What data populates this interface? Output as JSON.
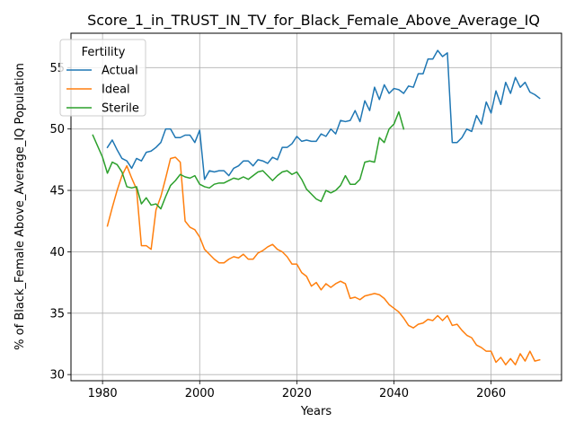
{
  "chart_data": {
    "type": "line",
    "title": "Score_1_in_TRUST_IN_TV_for_Black_Female_Above_Average_IQ",
    "xlabel": "Years",
    "ylabel": "% of Black_Female Above_Average_IQ Population",
    "xlim": [
      1973.5,
      2074.5
    ],
    "ylim": [
      29.5,
      57.8
    ],
    "x_ticks": [
      1980,
      2000,
      2020,
      2040,
      2060
    ],
    "y_ticks": [
      30,
      35,
      40,
      45,
      50,
      55
    ],
    "grid": true,
    "legend": {
      "title": "Fertility",
      "placement": "top-left"
    },
    "colors": {
      "Actual": "#1f77b4",
      "Ideal": "#ff7f0e",
      "Sterile": "#2ca02c"
    },
    "series": [
      {
        "name": "Actual",
        "x": [
          1981,
          1982,
          1983,
          1984,
          1985,
          1986,
          1987,
          1988,
          1989,
          1990,
          1991,
          1992,
          1993,
          1994,
          1995,
          1996,
          1997,
          1998,
          1999,
          2000,
          2001,
          2002,
          2003,
          2004,
          2005,
          2006,
          2007,
          2008,
          2009,
          2010,
          2011,
          2012,
          2013,
          2014,
          2015,
          2016,
          2017,
          2018,
          2019,
          2020,
          2021,
          2022,
          2023,
          2024,
          2025,
          2026,
          2027,
          2028,
          2029,
          2030,
          2031,
          2032,
          2033,
          2034,
          2035,
          2036,
          2037,
          2038,
          2039,
          2040,
          2041,
          2042,
          2043,
          2044,
          2045,
          2046,
          2047,
          2048,
          2049,
          2050,
          2051,
          2052,
          2053,
          2054,
          2055,
          2056,
          2057,
          2058,
          2059,
          2060,
          2061,
          2062,
          2063,
          2064,
          2065,
          2066,
          2067,
          2068,
          2069,
          2070
        ],
        "values": [
          48.5,
          49.1,
          48.3,
          47.6,
          47.4,
          46.8,
          47.6,
          47.4,
          48.1,
          48.2,
          48.5,
          48.9,
          50.0,
          50.0,
          49.3,
          49.3,
          49.5,
          49.5,
          48.9,
          49.9,
          45.9,
          46.6,
          46.5,
          46.6,
          46.6,
          46.2,
          46.8,
          47.0,
          47.4,
          47.4,
          47.0,
          47.5,
          47.4,
          47.2,
          47.7,
          47.5,
          48.5,
          48.5,
          48.8,
          49.4,
          49.0,
          49.1,
          49.0,
          49.0,
          49.6,
          49.4,
          50.0,
          49.6,
          50.7,
          50.6,
          50.7,
          51.5,
          50.6,
          52.3,
          51.5,
          53.4,
          52.4,
          53.6,
          52.9,
          53.3,
          53.2,
          52.9,
          53.5,
          53.4,
          54.5,
          54.5,
          55.7,
          55.7,
          56.4,
          55.9,
          56.2,
          48.9,
          48.9,
          49.3,
          50.0,
          49.8,
          51.1,
          50.4,
          52.2,
          51.3,
          53.1,
          52.0,
          53.8,
          52.9,
          54.2,
          53.4,
          53.8,
          53.0,
          52.8,
          52.5
        ]
      },
      {
        "name": "Ideal",
        "x": [
          1981,
          1982,
          1983,
          1984,
          1985,
          1986,
          1987,
          1988,
          1989,
          1990,
          1991,
          1992,
          1993,
          1994,
          1995,
          1996,
          1997,
          1998,
          1999,
          2000,
          2001,
          2002,
          2003,
          2004,
          2005,
          2006,
          2007,
          2008,
          2009,
          2010,
          2011,
          2012,
          2013,
          2014,
          2015,
          2016,
          2017,
          2018,
          2019,
          2020,
          2021,
          2022,
          2023,
          2024,
          2025,
          2026,
          2027,
          2028,
          2029,
          2030,
          2031,
          2032,
          2033,
          2034,
          2035,
          2036,
          2037,
          2038,
          2039,
          2040,
          2041,
          2042,
          2043,
          2044,
          2045,
          2046,
          2047,
          2048,
          2049,
          2050,
          2051,
          2052,
          2053,
          2054,
          2055,
          2056,
          2057,
          2058,
          2059,
          2060,
          2061,
          2062,
          2063,
          2064,
          2065,
          2066,
          2067,
          2068,
          2069,
          2070
        ],
        "values": [
          42.1,
          43.6,
          45.0,
          46.2,
          47.0,
          46.0,
          45.1,
          40.5,
          40.5,
          40.2,
          43.4,
          44.5,
          46.0,
          47.6,
          47.7,
          47.3,
          42.5,
          42.0,
          41.8,
          41.2,
          40.2,
          39.8,
          39.4,
          39.1,
          39.1,
          39.4,
          39.6,
          39.5,
          39.8,
          39.4,
          39.4,
          39.9,
          40.1,
          40.4,
          40.6,
          40.2,
          40.0,
          39.6,
          39.0,
          39.0,
          38.3,
          38.0,
          37.2,
          37.5,
          36.9,
          37.4,
          37.1,
          37.4,
          37.6,
          37.4,
          36.2,
          36.3,
          36.1,
          36.4,
          36.5,
          36.6,
          36.5,
          36.2,
          35.7,
          35.4,
          35.1,
          34.6,
          34.0,
          33.8,
          34.1,
          34.2,
          34.5,
          34.4,
          34.8,
          34.4,
          34.8,
          34.0,
          34.1,
          33.6,
          33.2,
          33.0,
          32.4,
          32.2,
          31.9,
          31.9,
          31.0,
          31.4,
          30.8,
          31.3,
          30.8,
          31.7,
          31.1,
          31.9,
          31.1,
          31.2
        ]
      },
      {
        "name": "Sterile",
        "x": [
          1978,
          1979,
          1980,
          1981,
          1982,
          1983,
          1984,
          1985,
          1986,
          1987,
          1988,
          1989,
          1990,
          1991,
          1992,
          1993,
          1994,
          1995,
          1996,
          1997,
          1998,
          1999,
          2000,
          2001,
          2002,
          2003,
          2004,
          2005,
          2006,
          2007,
          2008,
          2009,
          2010,
          2011,
          2012,
          2013,
          2014,
          2015,
          2016,
          2017,
          2018,
          2019,
          2020,
          2021,
          2022,
          2023,
          2024,
          2025,
          2026,
          2027,
          2028,
          2029,
          2030,
          2031,
          2032,
          2033,
          2034,
          2035,
          2036,
          2037,
          2038,
          2039,
          2040,
          2041,
          2042
        ],
        "values": [
          49.5,
          48.6,
          47.7,
          46.4,
          47.3,
          47.1,
          46.5,
          45.3,
          45.2,
          45.3,
          43.9,
          44.4,
          43.8,
          43.9,
          43.5,
          44.5,
          45.4,
          45.8,
          46.3,
          46.1,
          46.0,
          46.2,
          45.5,
          45.3,
          45.2,
          45.5,
          45.6,
          45.6,
          45.8,
          46.0,
          45.9,
          46.1,
          45.9,
          46.2,
          46.5,
          46.6,
          46.2,
          45.8,
          46.2,
          46.5,
          46.6,
          46.3,
          46.5,
          45.9,
          45.1,
          44.7,
          44.3,
          44.1,
          45.0,
          44.8,
          45.0,
          45.4,
          46.2,
          45.5,
          45.5,
          45.9,
          47.3,
          47.4,
          47.3,
          49.3,
          48.9,
          50.0,
          50.4,
          51.4,
          50.0
        ]
      }
    ]
  }
}
